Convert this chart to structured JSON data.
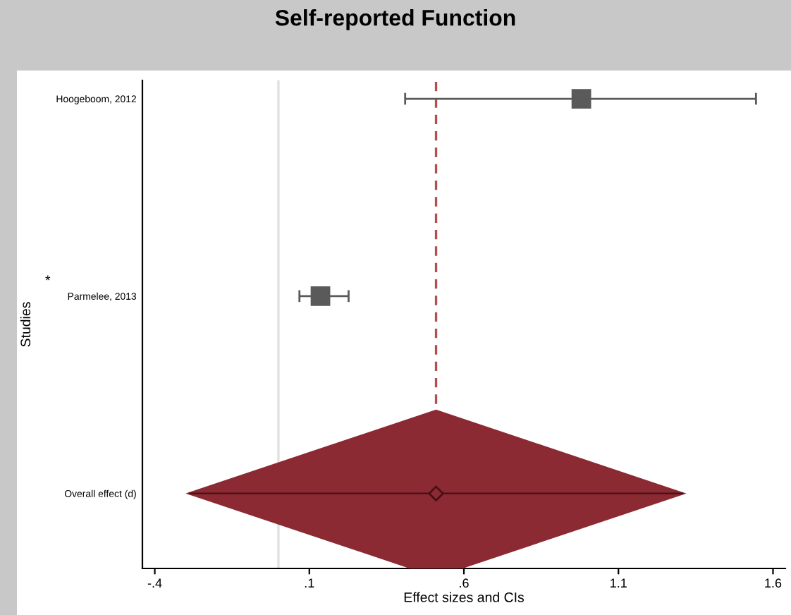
{
  "chart_data": {
    "type": "scatter",
    "orientation": "horizontal",
    "title": "Self-reported Function",
    "xlabel": "Effect sizes and CIs",
    "ylabel": "Studies",
    "categories": [
      "Hoogeboom, 2012",
      "Parmelee, 2013",
      "Overall effect (d)"
    ],
    "series": [
      {
        "color": "#5a5a5a",
        "marker": "square",
        "values": [
          0.98,
          0.136,
          null
        ],
        "errors": [
          [
            0.41,
            1.545
          ],
          [
            0.068,
            0.227
          ],
          null
        ]
      },
      {
        "color": "#8b2a32",
        "marker": "diamond",
        "values": [
          null,
          null,
          0.51
        ],
        "errors": [
          null,
          null,
          [
            -0.29,
            1.31
          ]
        ]
      }
    ],
    "xlim": [
      -0.44,
      1.64
    ],
    "xticks": [
      {
        "value": -0.4,
        "label": "-.4"
      },
      {
        "value": 0.1,
        "label": ".1"
      },
      {
        "value": 0.6,
        "label": ".6"
      },
      {
        "value": 1.1,
        "label": "1.1"
      },
      {
        "value": 1.6,
        "label": "1.6"
      }
    ],
    "ref_lines": [
      {
        "axis": "x",
        "value": 0,
        "color": "#e0e0e0",
        "line_style": "solid"
      },
      {
        "axis": "x",
        "value": 0.51,
        "color": "#b05050",
        "line_style": "dashed"
      }
    ],
    "annotations": [
      "*"
    ],
    "grid": false,
    "legend": false
  }
}
